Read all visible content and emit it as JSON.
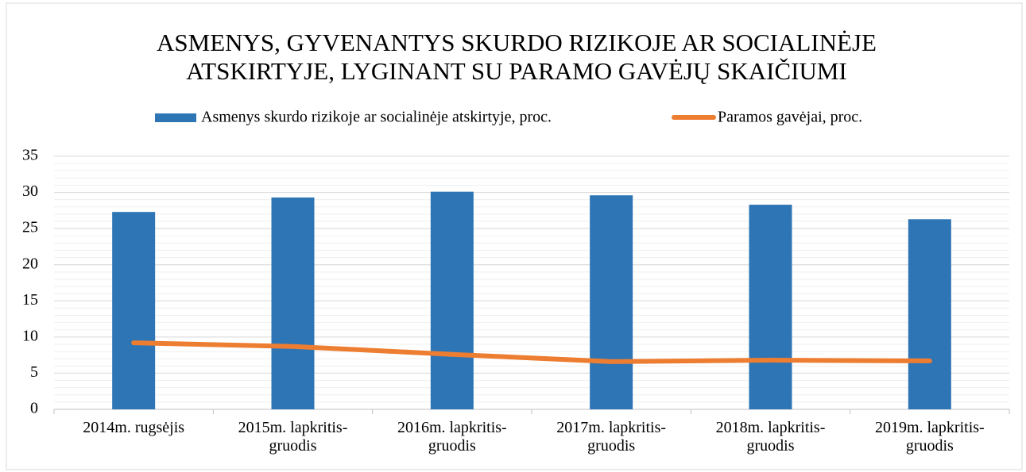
{
  "chart_data": {
    "type": "bar_line",
    "title": "ASMENYS, GYVENANTYS SKURDO RIZIKOJE AR SOCIALINĖJE ATSKIRTYJE, LYGINANT SU PARAMO GAVĖJŲ SKAIČIUMI",
    "categories": [
      "2014m. rugsėjis",
      "2015m. lapkritis-gruodis",
      "2016m. lapkritis-gruodis",
      "2017m. lapkritis-gruodis",
      "2018m. lapkritis-gruodis",
      "2019m. lapkritis-gruodis"
    ],
    "series": [
      {
        "name": "Asmenys skurdo rizikoje ar socialinėje atskirtyje, proc.",
        "type": "bar",
        "color": "#2e75b6",
        "values": [
          27.3,
          29.3,
          30.1,
          29.6,
          28.3,
          26.3
        ]
      },
      {
        "name": "Paramos gavėjai, proc.",
        "type": "line",
        "color": "#ed7d31",
        "values": [
          9.2,
          8.7,
          7.6,
          6.6,
          6.8,
          6.7
        ]
      }
    ],
    "ylim": [
      0,
      35
    ],
    "yticks": [
      0,
      5,
      10,
      15,
      20,
      25,
      30,
      35
    ],
    "grid": true,
    "legend": "top"
  }
}
